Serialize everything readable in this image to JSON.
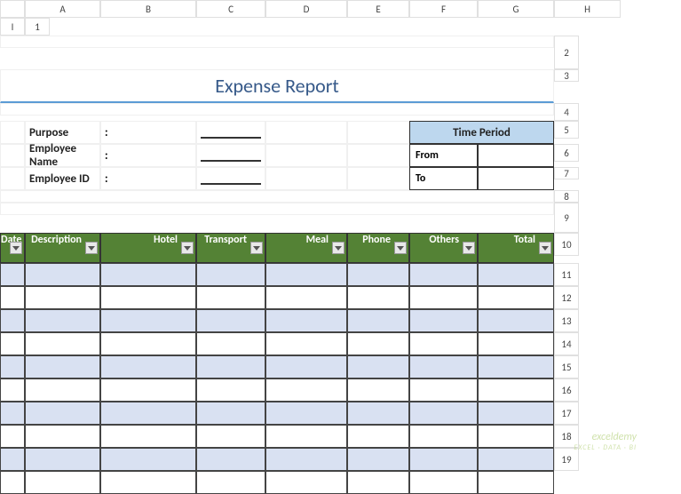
{
  "columns": [
    "A",
    "B",
    "C",
    "D",
    "E",
    "F",
    "G",
    "H",
    "I"
  ],
  "rows": [
    "1",
    "2",
    "3",
    "4",
    "5",
    "6",
    "7",
    "8",
    "9",
    "10",
    "11",
    "12",
    "13",
    "14",
    "15",
    "16",
    "17",
    "18",
    "19"
  ],
  "title": "Expense Report",
  "fields": {
    "purpose": {
      "label": "Purpose",
      "colon": ":"
    },
    "employee_name": {
      "label": "Employee Name",
      "colon": ":"
    },
    "employee_id": {
      "label": "Employee ID",
      "colon": ":"
    }
  },
  "time_period": {
    "header": "Time Period",
    "from_label": "From",
    "to_label": "To",
    "from_value": "",
    "to_value": ""
  },
  "table": {
    "headers": [
      "Date",
      "Description",
      "Hotel",
      "Transport",
      "Meal",
      "Phone",
      "Others",
      "Total"
    ],
    "row_banding": [
      "band",
      "",
      "band",
      "",
      "band",
      "",
      "band",
      "",
      "band",
      ""
    ]
  },
  "colors": {
    "title": "#365989",
    "title_underline": "#5b9bd5",
    "tp_header_bg": "#bdd7ee",
    "tbl_header_bg": "#548235",
    "band_bg": "#d9e1f2",
    "border_dark": "#333333"
  },
  "watermark": {
    "main": "exceldemy",
    "sub": "EXCEL · DATA · BI"
  }
}
